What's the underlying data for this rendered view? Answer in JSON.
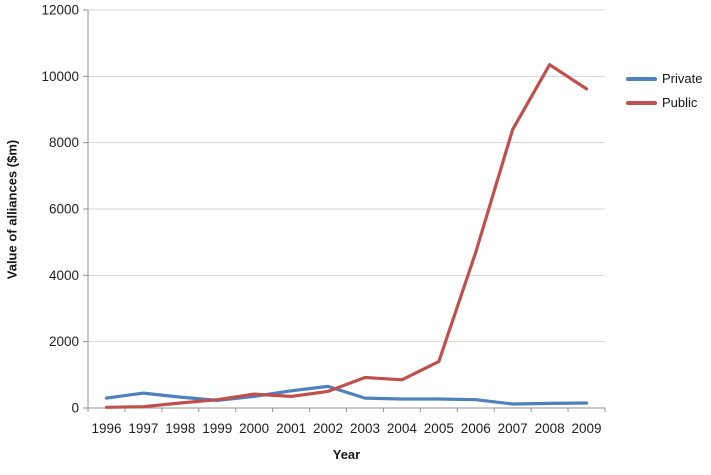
{
  "chart_data": {
    "type": "line",
    "x": [
      "1996",
      "1997",
      "1998",
      "1999",
      "2000",
      "2001",
      "2002",
      "2003",
      "2004",
      "2005",
      "2006",
      "2007",
      "2008",
      "2009"
    ],
    "series": [
      {
        "name": "Private",
        "color": "#4F81BD",
        "values": [
          300,
          450,
          330,
          230,
          350,
          520,
          650,
          300,
          270,
          270,
          250,
          120,
          140,
          150
        ]
      },
      {
        "name": "Public",
        "color": "#C0504D",
        "values": [
          20,
          40,
          150,
          250,
          420,
          350,
          500,
          920,
          850,
          1400,
          4700,
          8400,
          10350,
          9620
        ]
      }
    ],
    "title": "",
    "xlabel": "Year",
    "ylabel": "Value of alliances ($m)",
    "ylim": [
      0,
      12000
    ],
    "ytick_step": 2000,
    "yticks": [
      0,
      2000,
      4000,
      6000,
      8000,
      10000,
      12000
    ],
    "grid": "horizontal",
    "legend_position": "right"
  },
  "colors": {
    "grid": "#D6D6D6",
    "axis": "#909090",
    "tick_text": "#1f1f1f",
    "private_line": "#4F81BD",
    "public_line": "#C0504D"
  }
}
